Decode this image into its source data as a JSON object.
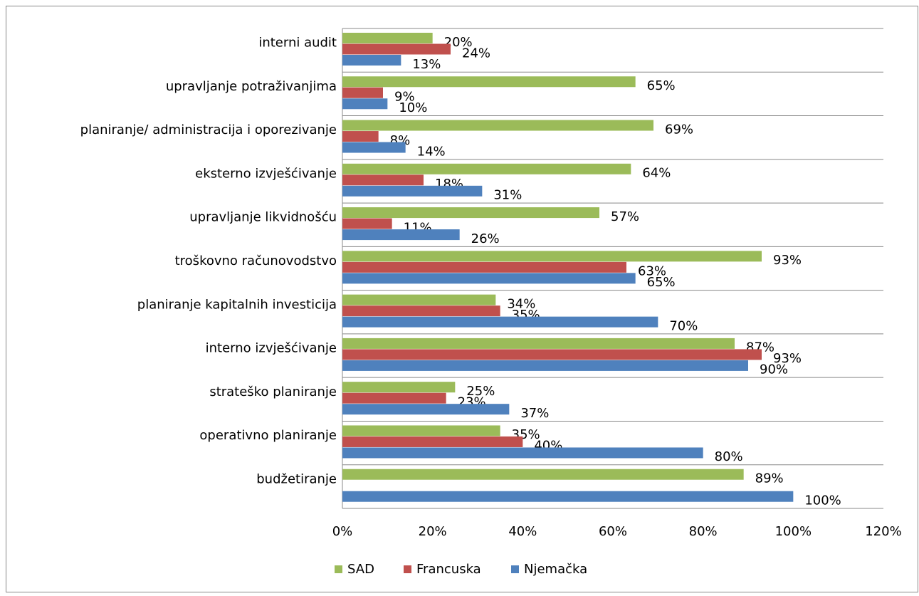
{
  "chart_data": {
    "type": "hbar",
    "categories": [
      "interni audit",
      "upravljanje potraživanjima",
      "planiranje/ administracija i oporezivanje",
      "eksterno izvješćivanje",
      "upravljanje likvidnošću",
      "troškovno računovodstvo",
      "planiranje kapitalnih investicija",
      "interno izvješćivanje",
      "strateško planiranje",
      "operativno planiranje",
      "budžetiranje"
    ],
    "series": [
      {
        "name": "SAD",
        "color": "#9bbb59",
        "values": [
          20,
          65,
          69,
          64,
          57,
          93,
          34,
          87,
          25,
          35,
          89
        ],
        "value_labels": [
          "20%",
          "65%",
          "69%",
          "64%",
          "57%",
          "93%",
          "34%",
          "87%",
          "25%",
          "35%",
          "89%"
        ]
      },
      {
        "name": "Francuska",
        "color": "#c0504d",
        "values": [
          24,
          9,
          8,
          18,
          11,
          63,
          35,
          93,
          23,
          40,
          null
        ],
        "value_labels": [
          "24%",
          "9%",
          "8%",
          "18%",
          "11%",
          "63%",
          "35%",
          "93%",
          "23%",
          "40%",
          null
        ]
      },
      {
        "name": "Njemačka",
        "color": "#4f81bd",
        "values": [
          13,
          10,
          14,
          31,
          26,
          65,
          70,
          90,
          37,
          80,
          100
        ],
        "value_labels": [
          "13%",
          "10%",
          "14%",
          "31%",
          "26%",
          "65%",
          "70%",
          "90%",
          "37%",
          "80%",
          "100%"
        ]
      }
    ],
    "xlim": [
      0,
      120
    ],
    "xticks": [
      {
        "value": 0,
        "label": "0%"
      },
      {
        "value": 20,
        "label": "20%"
      },
      {
        "value": 40,
        "label": "40%"
      },
      {
        "value": 60,
        "label": "60%"
      },
      {
        "value": 80,
        "label": "80%"
      },
      {
        "value": 100,
        "label": "100%"
      },
      {
        "value": 120,
        "label": "120%"
      }
    ],
    "legend": "bottom"
  }
}
